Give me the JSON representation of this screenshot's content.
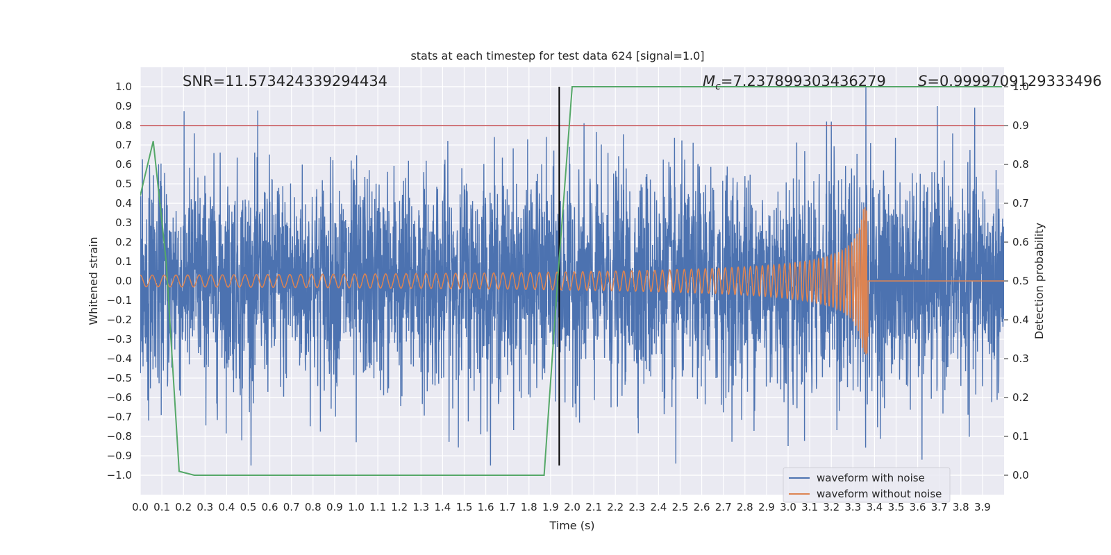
{
  "chart_data": {
    "type": "line",
    "title": "stats at each timestep for test data 624 [signal=1.0]",
    "xlabel": "Time (s)",
    "ylabel": "Whitened strain",
    "y2label": "Detection probability",
    "xlim": [
      0.0,
      4.0
    ],
    "ylim": [
      -1.1,
      1.1
    ],
    "y2lim": [
      -0.05,
      1.05
    ],
    "x_ticks": [
      0.0,
      0.1,
      0.2,
      0.3,
      0.4,
      0.5,
      0.6,
      0.7,
      0.8,
      0.9,
      1.0,
      1.1,
      1.2,
      1.3,
      1.4,
      1.5,
      1.6,
      1.7,
      1.8,
      1.9,
      2.0,
      2.1,
      2.2,
      2.3,
      2.4,
      2.5,
      2.6,
      2.7,
      2.8,
      2.9,
      3.0,
      3.1,
      3.2,
      3.3,
      3.4,
      3.5,
      3.6,
      3.7,
      3.8,
      3.9
    ],
    "x_tick_labels": [
      "0.0",
      "0.1",
      "0.2",
      "0.3",
      "0.4",
      "0.5",
      "0.6",
      "0.7",
      "0.8",
      "0.9",
      "1.0",
      "1.1",
      "1.2",
      "1.3",
      "1.4",
      "1.5",
      "1.6",
      "1.7",
      "1.8",
      "1.9",
      "2.0",
      "2.1",
      "2.2",
      "2.3",
      "2.4",
      "2.5",
      "2.6",
      "2.7",
      "2.8",
      "2.9",
      "3.0",
      "3.1",
      "3.2",
      "3.3",
      "3.4",
      "3.5",
      "3.6",
      "3.7",
      "3.8",
      "3.9"
    ],
    "y_ticks": [
      1.0,
      0.9,
      0.8,
      0.7,
      0.6,
      0.5,
      0.4,
      0.3,
      0.2,
      0.1,
      0.0,
      -0.1,
      -0.2,
      -0.3,
      -0.4,
      -0.5,
      -0.6,
      -0.7,
      -0.8,
      -0.9,
      -1.0
    ],
    "y_tick_labels": [
      "1.0",
      "0.9",
      "0.8",
      "0.7",
      "0.6",
      "0.5",
      "0.4",
      "0.3",
      "0.2",
      "0.1",
      "0.0",
      "−0.1",
      "−0.2",
      "−0.3",
      "−0.4",
      "−0.5",
      "−0.6",
      "−0.7",
      "−0.8",
      "−0.9",
      "−1.0"
    ],
    "y2_ticks": [
      1.0,
      0.9,
      0.8,
      0.7,
      0.6,
      0.5,
      0.4,
      0.3,
      0.2,
      0.1,
      0.0
    ],
    "y2_tick_labels": [
      "1.0",
      "0.9",
      "0.8",
      "0.7",
      "0.6",
      "0.5",
      "0.4",
      "0.3",
      "0.2",
      "0.1",
      "0.0"
    ],
    "grid": true,
    "background": "#eaeaf2",
    "legend": {
      "placement": "lower-right"
    },
    "series": [
      {
        "name": "waveform with noise",
        "color": "#4c72b0",
        "kind": "noise",
        "t_range": [
          0.0,
          4.0
        ],
        "typical_amplitude": 0.3,
        "max": 1.0,
        "min": -0.95,
        "notable_peaks": [
          [
            0.25,
            0.76
          ],
          [
            0.47,
            -0.82
          ],
          [
            1.0,
            -0.83
          ],
          [
            2.48,
            -0.94
          ],
          [
            3.0,
            -0.85
          ],
          [
            3.2,
            0.82
          ],
          [
            3.36,
            1.0
          ],
          [
            3.62,
            -0.92
          ]
        ]
      },
      {
        "name": "waveform without noise",
        "color": "#dd8452",
        "kind": "chirp",
        "t_range": [
          0.0,
          3.37
        ],
        "merger_time": 3.37,
        "initial_amplitude": 0.03,
        "peak_amplitude": 0.38,
        "post_merger_value": 0.0
      },
      {
        "name": "",
        "color": "#55a868",
        "axis": "right",
        "x": [
          0.0,
          0.06,
          0.12,
          0.18,
          0.25,
          1.87,
          1.93,
          2.0,
          3.99
        ],
        "y": [
          0.72,
          0.86,
          0.55,
          0.01,
          0.0,
          0.0,
          0.48,
          1.0,
          1.0
        ]
      }
    ],
    "hlines": [
      {
        "y": 0.8,
        "color": "#c44e52"
      }
    ],
    "vlines": [
      {
        "x": 1.94,
        "y_range": [
          -0.95,
          1.0
        ],
        "color": "#000000"
      }
    ],
    "annotations": {
      "snr": "SNR=11.573424339294434",
      "mc_symbol": "M",
      "mc_subscript": "c",
      "mc_value": "=7.237899303436279",
      "s_symbol": "S",
      "s_value": "=0.9999709129333496"
    }
  }
}
